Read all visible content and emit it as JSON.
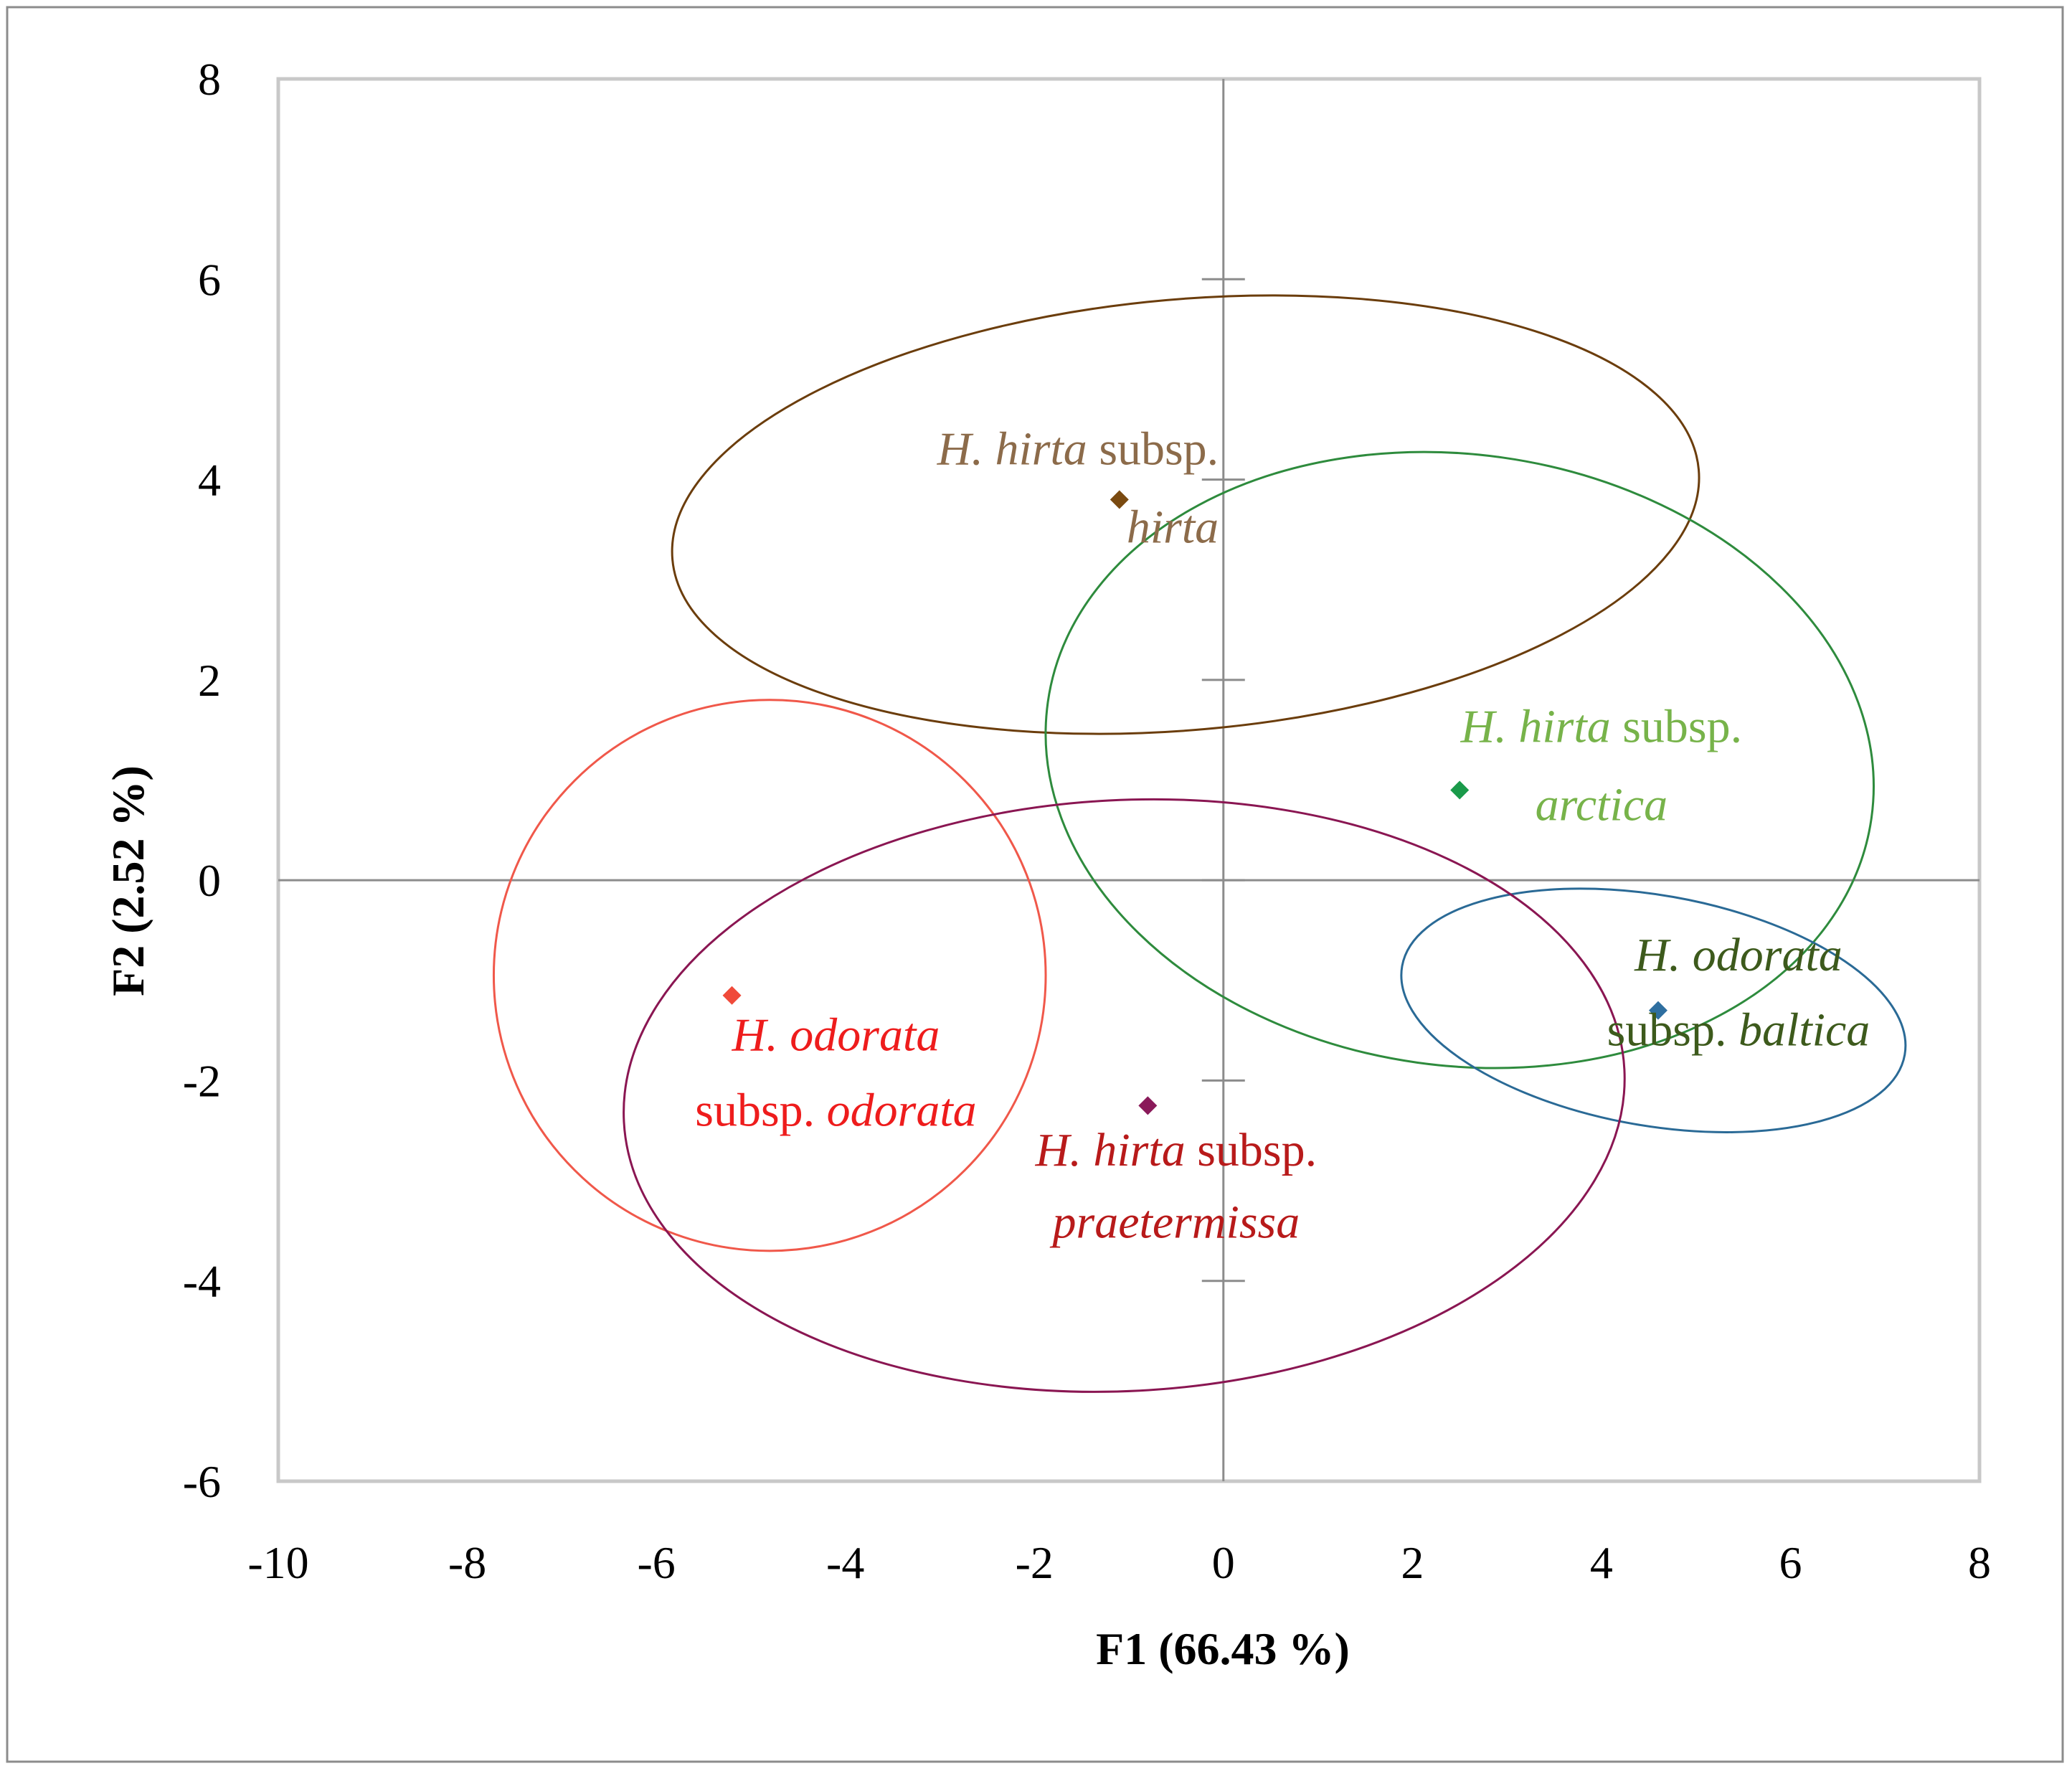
{
  "chart_data": {
    "type": "scatter",
    "xlabel": "F1 (66.43 %)",
    "ylabel": "F2 (2.52 %)",
    "xlim": [
      -10,
      8
    ],
    "ylim": [
      -6,
      8
    ],
    "xticks": [
      -10,
      -8,
      -6,
      -4,
      -2,
      0,
      2,
      4,
      6,
      8
    ],
    "yticks": [
      -6,
      -4,
      -2,
      0,
      2,
      4,
      6,
      8
    ],
    "xtick_labels": [
      "-10",
      "-8",
      "-6",
      "-4",
      "-2",
      "0",
      "2",
      "4",
      "6",
      "8"
    ],
    "ytick_labels": [
      "-6",
      "-4",
      "-2",
      "0",
      "2",
      "4",
      "6",
      "8"
    ],
    "grid": false,
    "groups": [
      {
        "key": "hirta-hirta",
        "label_lines": [
          [
            {
              "text": "H. hirta",
              "italic": true
            },
            {
              "text": " subsp.",
              "italic": false
            }
          ],
          [
            {
              "text": "hirta",
              "italic": true
            }
          ]
        ],
        "label_anchor": "end",
        "label_at": [
          -0.05,
          4.15
        ],
        "label_line_gap": 0.78,
        "centroid": [
          -1.1,
          3.8
        ],
        "ellipse": {
          "cx": -0.4,
          "cy": 3.65,
          "rx": 5.45,
          "ry": 2.15,
          "angle": 5
        },
        "marker_color": "#7a4a10",
        "ellipse_color": "#6b3d0c",
        "label_color": "#8c6b4a"
      },
      {
        "key": "hirta-arctica",
        "label_lines": [
          [
            {
              "text": "H. hirta",
              "italic": true
            },
            {
              "text": " subsp.",
              "italic": false
            }
          ],
          [
            {
              "text": "arctica",
              "italic": true
            }
          ]
        ],
        "label_anchor": "middle",
        "label_at": [
          4.0,
          1.38
        ],
        "label_line_gap": 0.78,
        "centroid": [
          2.5,
          0.9
        ],
        "ellipse": {
          "cx": 2.5,
          "cy": 1.2,
          "rx": 4.4,
          "ry": 3.05,
          "angle": -8
        },
        "marker_color": "#1a9a4a",
        "ellipse_color": "#2e8b3d",
        "label_color": "#77b34a"
      },
      {
        "key": "odorata-baltica",
        "label_lines": [
          [
            {
              "text": "H. odorata",
              "italic": true
            }
          ],
          [
            {
              "text": "subsp. ",
              "italic": false
            },
            {
              "text": "baltica",
              "italic": true
            }
          ]
        ],
        "label_anchor": "middle",
        "label_at": [
          5.45,
          -0.9
        ],
        "label_line_gap": 0.75,
        "centroid": [
          4.6,
          -1.3
        ],
        "ellipse": {
          "cx": 4.55,
          "cy": -1.3,
          "rx": 2.7,
          "ry": 1.15,
          "angle": -10
        },
        "marker_color": "#2f6fa0",
        "ellipse_color": "#2a6a96",
        "label_color": "#3d5a1c"
      },
      {
        "key": "odorata-odorata",
        "label_lines": [
          [
            {
              "text": "H. odorata",
              "italic": true
            }
          ],
          [
            {
              "text": "subsp. ",
              "italic": false
            },
            {
              "text": "odorata",
              "italic": true
            }
          ]
        ],
        "label_anchor": "middle",
        "label_at": [
          -4.1,
          -1.7
        ],
        "label_line_gap": 0.75,
        "centroid": [
          -5.2,
          -1.15
        ],
        "ellipse": {
          "cx": -4.8,
          "cy": -0.95,
          "rx": 2.92,
          "ry": 2.75,
          "angle": 0
        },
        "marker_color": "#f04a3a",
        "ellipse_color": "#f0584a",
        "label_color": "#ee1c1c"
      },
      {
        "key": "hirta-praetermissa",
        "label_lines": [
          [
            {
              "text": "H. hirta",
              "italic": true
            },
            {
              "text": " subsp.",
              "italic": false
            }
          ],
          [
            {
              "text": "praetermissa",
              "italic": true
            }
          ]
        ],
        "label_anchor": "middle",
        "label_at": [
          -0.5,
          -2.85
        ],
        "label_line_gap": 0.72,
        "centroid": [
          -0.8,
          -2.25
        ],
        "ellipse": {
          "cx": -1.05,
          "cy": -2.15,
          "rx": 5.3,
          "ry": 2.95,
          "angle": 3
        },
        "marker_color": "#8a1a5a",
        "ellipse_color": "#8a1652",
        "label_color": "#b81a1a"
      }
    ]
  }
}
